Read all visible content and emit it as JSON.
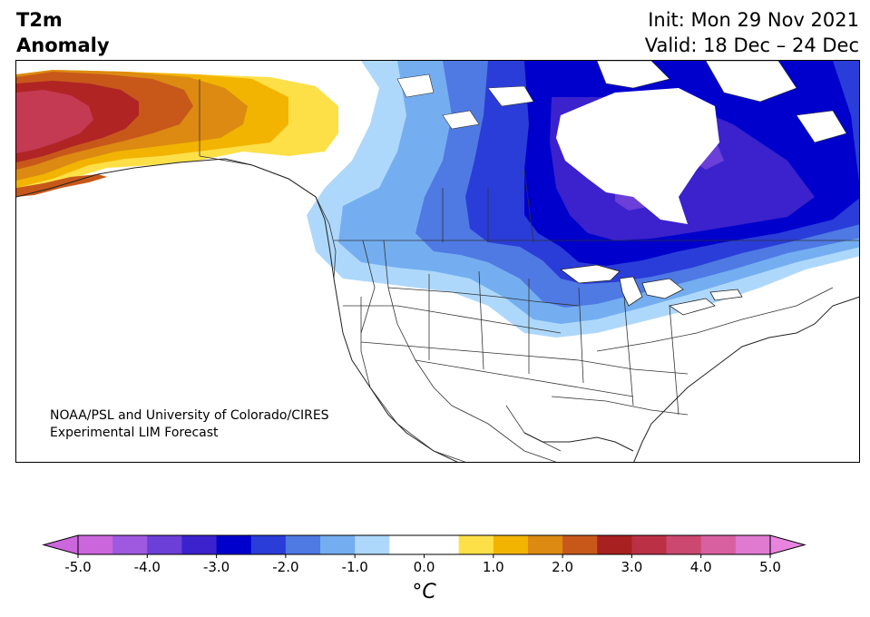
{
  "title": {
    "left_line1": "T2m",
    "left_line2": "Anomaly",
    "init": "Init: Mon 29 Nov 2021",
    "valid": "Valid: 18 Dec – 24 Dec"
  },
  "credit": {
    "line1": "NOAA/PSL and University of Colorado/CIRES",
    "line2": "Experimental LIM Forecast"
  },
  "colorbar": {
    "units": "°C",
    "tick_labels": [
      "-5.0",
      "-4.0",
      "-3.0",
      "-2.0",
      "-1.0",
      "0.0",
      "1.0",
      "2.0",
      "3.0",
      "4.0",
      "5.0"
    ],
    "colors": [
      "#cc66dd",
      "#9f59e0",
      "#6b3fd8",
      "#3b22cc",
      "#0000cc",
      "#2a3dd8",
      "#4f79e3",
      "#74aef0",
      "#aed8fb",
      "#ffffff",
      "#ffffff",
      "#fde048",
      "#f2b400",
      "#dc8a12",
      "#c8581a",
      "#a82020",
      "#bb3045",
      "#cc4870",
      "#d860a0",
      "#e079d0"
    ],
    "extend_low_color": "#cc66dd",
    "extend_high_color": "#e884e0"
  },
  "map": {
    "region": "North America",
    "anomaly_colors": {
      "warm_max": "#c43a52",
      "warm_high": "#b02424",
      "warm_mid": "#c8581a",
      "warm_low": "#dc8a12",
      "warm_min": "#f2b400",
      "warm_faint": "#fde048",
      "cold_faint": "#aed8fb",
      "cold_low": "#74aef0",
      "cold_mid": "#4f79e3",
      "cold_high": "#2a3dd8",
      "cold_max": "#0000cc",
      "cold_extreme": "#3b22cc",
      "cold_extreme2": "#6b3fd8"
    }
  }
}
